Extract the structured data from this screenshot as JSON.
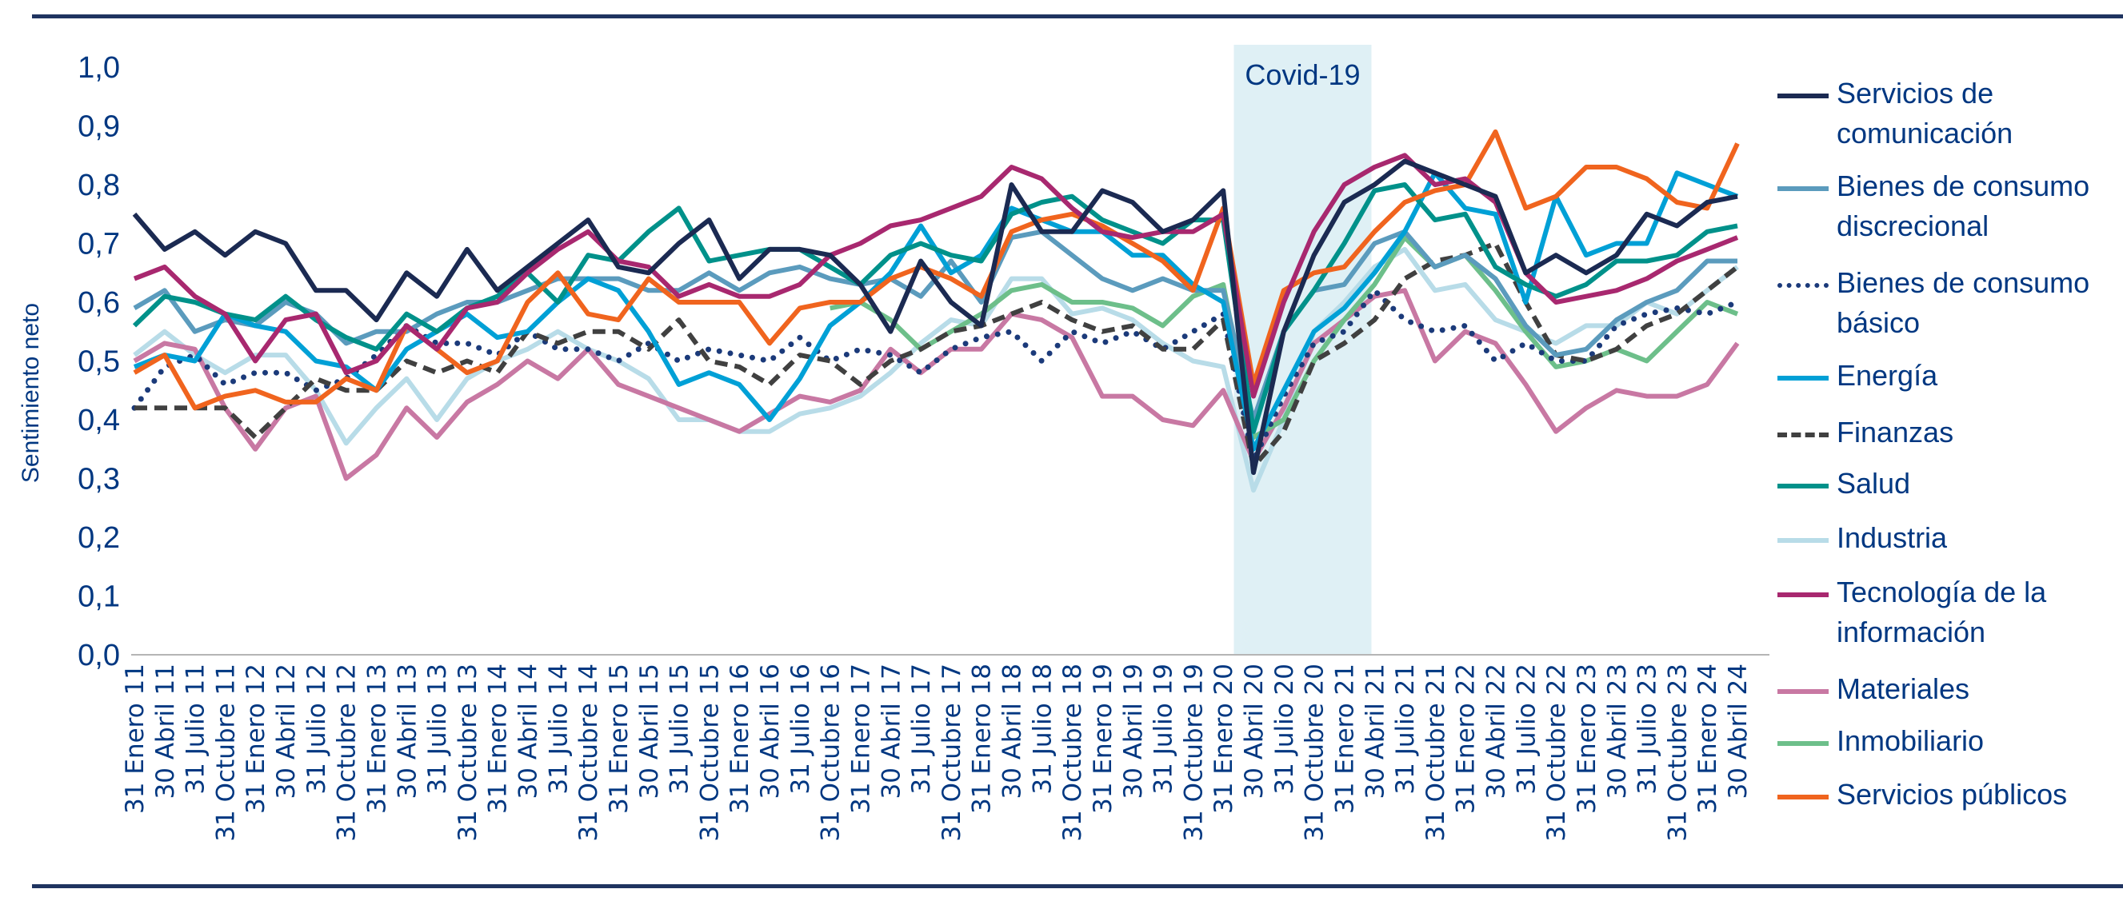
{
  "chart_data": {
    "type": "line",
    "ylabel": "Sentimiento neto",
    "xlabel": "",
    "ylim": [
      0,
      1.0
    ],
    "yticks": [
      "0,0",
      "0,1",
      "0,2",
      "0,3",
      "0,4",
      "0,5",
      "0,6",
      "0,7",
      "0,8",
      "0,9",
      "1,0"
    ],
    "grid": false,
    "legend_placement": "right",
    "shaded_region": {
      "label": "Covid-19",
      "from": "31 Enero 20",
      "to": "30 Abril 21",
      "color": "#dff0f5"
    },
    "categories": [
      "31 Enero 11",
      "30 Abril 11",
      "31 Julio 11",
      "31 Octubre 11",
      "31 Enero 12",
      "30 Abril 12",
      "31 Julio 12",
      "31 Octubre 12",
      "31 Enero 13",
      "30 Abril 13",
      "31 Julio 13",
      "31 Octubre 13",
      "31 Enero 14",
      "30 Abril 14",
      "31 Julio 14",
      "31 Octubre 14",
      "31 Enero 15",
      "30 Abril 15",
      "31 Julio 15",
      "31 Octubre 15",
      "31 Enero 16",
      "30 Abril 16",
      "31 Julio 16",
      "31 Octubre 16",
      "31 Enero 17",
      "30 Abril 17",
      "31 Julio 17",
      "31 Octubre 17",
      "31 Enero 18",
      "30 Abril 18",
      "31 Julio 18",
      "31 Octubre 18",
      "31 Enero 19",
      "30 Abril 19",
      "31 Julio 19",
      "31 Octubre 19",
      "31 Enero 20",
      "30 Abril 20",
      "31 Julio 20",
      "31 Octubre 20",
      "31 Enero 21",
      "30 Abril 21",
      "31 Julio 21",
      "31 Octubre 21",
      "31 Enero 22",
      "30 Abril 22",
      "31 Julio 22",
      "31 Octubre 22",
      "31 Enero 23",
      "30 Abril 23",
      "31 Julio 23",
      "31 Octubre 23",
      "31 Enero 24",
      "30 Abril 24"
    ],
    "series": [
      {
        "name": "Servicios de comunicación",
        "color": "#1b2a52",
        "style": "solid",
        "values": [
          0.75,
          0.69,
          0.72,
          0.68,
          0.72,
          0.7,
          0.62,
          0.62,
          0.57,
          0.65,
          0.61,
          0.69,
          0.62,
          0.66,
          0.7,
          0.74,
          0.66,
          0.65,
          0.7,
          0.74,
          0.64,
          0.69,
          0.69,
          0.68,
          0.63,
          0.55,
          0.67,
          0.6,
          0.56,
          0.8,
          0.72,
          0.72,
          0.79,
          0.77,
          0.72,
          0.74,
          0.79,
          0.31,
          0.55,
          0.68,
          0.77,
          0.8,
          0.84,
          0.82,
          0.8,
          0.78,
          0.65,
          0.68,
          0.65,
          0.68,
          0.75,
          0.73,
          0.77,
          0.78
        ]
      },
      {
        "name": "Bienes de consumo discrecional",
        "color": "#5b9bbd",
        "style": "solid",
        "values": [
          0.59,
          0.62,
          0.55,
          0.57,
          0.56,
          0.6,
          0.58,
          0.53,
          0.55,
          0.55,
          0.58,
          0.6,
          0.6,
          0.62,
          0.64,
          0.64,
          0.64,
          0.62,
          0.62,
          0.65,
          0.62,
          0.65,
          0.66,
          0.64,
          0.63,
          0.64,
          0.61,
          0.67,
          0.6,
          0.71,
          0.72,
          0.68,
          0.64,
          0.62,
          0.64,
          0.62,
          0.62,
          0.4,
          0.55,
          0.62,
          0.63,
          0.7,
          0.72,
          0.66,
          0.68,
          0.64,
          0.56,
          0.51,
          0.52,
          0.57,
          0.6,
          0.62,
          0.67,
          0.67
        ]
      },
      {
        "name": "Bienes de consumo básico",
        "color": "#1b3a7a",
        "style": "dotted",
        "values": [
          0.42,
          0.49,
          0.51,
          0.46,
          0.48,
          0.48,
          0.45,
          0.47,
          0.51,
          0.56,
          0.53,
          0.53,
          0.51,
          0.55,
          0.52,
          0.52,
          0.5,
          0.53,
          0.5,
          0.52,
          0.51,
          0.5,
          0.54,
          0.5,
          0.52,
          0.51,
          0.48,
          0.52,
          0.54,
          0.55,
          0.5,
          0.55,
          0.53,
          0.55,
          0.52,
          0.55,
          0.58,
          0.33,
          0.44,
          0.53,
          0.55,
          0.62,
          0.57,
          0.55,
          0.56,
          0.5,
          0.53,
          0.5,
          0.5,
          0.56,
          0.58,
          0.59,
          0.58,
          0.6
        ]
      },
      {
        "name": "Energía",
        "color": "#00a0d6",
        "style": "solid",
        "values": [
          0.49,
          0.51,
          0.5,
          0.58,
          0.56,
          0.55,
          0.5,
          0.49,
          0.45,
          0.52,
          0.55,
          0.58,
          0.54,
          0.55,
          0.6,
          0.64,
          0.62,
          0.55,
          0.46,
          0.48,
          0.46,
          0.4,
          0.47,
          0.56,
          0.6,
          0.65,
          0.73,
          0.65,
          0.68,
          0.76,
          0.74,
          0.72,
          0.72,
          0.68,
          0.68,
          0.63,
          0.6,
          0.35,
          0.45,
          0.55,
          0.59,
          0.65,
          0.72,
          0.82,
          0.76,
          0.75,
          0.6,
          0.78,
          0.68,
          0.7,
          0.7,
          0.82,
          0.8,
          0.78
        ]
      },
      {
        "name": "Finanzas",
        "color": "#404040",
        "style": "dashed",
        "values": [
          0.42,
          0.42,
          0.42,
          0.42,
          0.37,
          0.42,
          0.47,
          0.45,
          0.45,
          0.5,
          0.48,
          0.5,
          0.48,
          0.55,
          0.53,
          0.55,
          0.55,
          0.52,
          0.57,
          0.5,
          0.49,
          0.46,
          0.51,
          0.5,
          0.46,
          0.5,
          0.52,
          0.55,
          0.56,
          0.58,
          0.6,
          0.57,
          0.55,
          0.56,
          0.52,
          0.52,
          0.57,
          0.32,
          0.38,
          0.5,
          0.53,
          0.57,
          0.64,
          0.67,
          0.68,
          0.7,
          0.6,
          0.51,
          0.5,
          0.52,
          0.56,
          0.58,
          0.62,
          0.66
        ]
      },
      {
        "name": "Salud",
        "color": "#00918a",
        "style": "solid",
        "values": [
          0.56,
          0.61,
          0.6,
          0.58,
          0.57,
          0.61,
          0.57,
          0.54,
          0.52,
          0.58,
          0.55,
          0.59,
          0.61,
          0.65,
          0.6,
          0.68,
          0.67,
          0.72,
          0.76,
          0.67,
          0.68,
          0.69,
          0.69,
          0.66,
          0.63,
          0.68,
          0.7,
          0.68,
          0.67,
          0.75,
          0.77,
          0.78,
          0.74,
          0.72,
          0.7,
          0.74,
          0.74,
          0.38,
          0.55,
          0.62,
          0.7,
          0.79,
          0.8,
          0.74,
          0.75,
          0.66,
          0.63,
          0.61,
          0.63,
          0.67,
          0.67,
          0.68,
          0.72,
          0.73
        ]
      },
      {
        "name": "Industria",
        "color": "#b8dce8",
        "style": "solid",
        "values": [
          0.51,
          0.55,
          0.51,
          0.48,
          0.51,
          0.51,
          0.45,
          0.36,
          0.42,
          0.47,
          0.4,
          0.47,
          0.5,
          0.52,
          0.55,
          0.52,
          0.5,
          0.47,
          0.4,
          0.4,
          0.38,
          0.38,
          0.41,
          0.42,
          0.44,
          0.48,
          0.53,
          0.57,
          0.56,
          0.64,
          0.64,
          0.58,
          0.59,
          0.57,
          0.53,
          0.5,
          0.49,
          0.28,
          0.4,
          0.55,
          0.6,
          0.66,
          0.69,
          0.62,
          0.63,
          0.57,
          0.55,
          0.53,
          0.56,
          0.56,
          0.6,
          0.58,
          0.62,
          0.66
        ]
      },
      {
        "name": "Tecnología de la información",
        "color": "#a8286f",
        "style": "solid",
        "values": [
          0.64,
          0.66,
          0.61,
          0.58,
          0.5,
          0.57,
          0.58,
          0.48,
          0.5,
          0.56,
          0.52,
          0.59,
          0.6,
          0.65,
          0.69,
          0.72,
          0.67,
          0.66,
          0.61,
          0.63,
          0.61,
          0.61,
          0.63,
          0.68,
          0.7,
          0.73,
          0.74,
          0.76,
          0.78,
          0.83,
          0.81,
          0.76,
          0.72,
          0.71,
          0.72,
          0.72,
          0.75,
          0.44,
          0.6,
          0.72,
          0.8,
          0.83,
          0.85,
          0.8,
          0.81,
          0.77,
          0.65,
          0.6,
          0.61,
          0.62,
          0.64,
          0.67,
          0.69,
          0.71
        ]
      },
      {
        "name": "Materiales",
        "color": "#c878a3",
        "style": "solid",
        "values": [
          0.5,
          0.53,
          0.52,
          0.42,
          0.35,
          0.42,
          0.44,
          0.3,
          0.34,
          0.42,
          0.37,
          0.43,
          0.46,
          0.5,
          0.47,
          0.52,
          0.46,
          0.44,
          0.42,
          0.4,
          0.38,
          0.41,
          0.44,
          0.43,
          0.45,
          0.52,
          0.48,
          0.52,
          0.52,
          0.58,
          0.57,
          0.54,
          0.44,
          0.44,
          0.4,
          0.39,
          0.45,
          0.33,
          0.42,
          0.53,
          0.57,
          0.61,
          0.62,
          0.5,
          0.55,
          0.53,
          0.46,
          0.38,
          0.42,
          0.45,
          0.44,
          0.44,
          0.46,
          0.53
        ]
      },
      {
        "name": "Inmobiliario",
        "color": "#6dbf8a",
        "style": "solid",
        "values": [
          null,
          null,
          null,
          null,
          null,
          null,
          null,
          null,
          null,
          null,
          null,
          null,
          null,
          null,
          null,
          null,
          null,
          null,
          null,
          null,
          null,
          null,
          null,
          0.59,
          0.6,
          0.57,
          0.52,
          0.55,
          0.58,
          0.62,
          0.63,
          0.6,
          0.6,
          0.59,
          0.56,
          0.61,
          0.63,
          0.37,
          0.4,
          0.5,
          0.57,
          0.63,
          0.71,
          0.66,
          0.68,
          0.62,
          0.55,
          0.49,
          0.5,
          0.52,
          0.5,
          0.55,
          0.6,
          0.58
        ]
      },
      {
        "name": "Servicios públicos",
        "color": "#f0641e",
        "style": "solid",
        "values": [
          0.48,
          0.51,
          0.42,
          0.44,
          0.45,
          0.43,
          0.43,
          0.47,
          0.45,
          0.56,
          0.52,
          0.48,
          0.5,
          0.6,
          0.65,
          0.58,
          0.57,
          0.64,
          0.6,
          0.6,
          0.6,
          0.53,
          0.59,
          0.6,
          0.6,
          0.64,
          0.66,
          0.64,
          0.61,
          0.72,
          0.74,
          0.75,
          0.73,
          0.7,
          0.67,
          0.62,
          0.76,
          0.46,
          0.62,
          0.65,
          0.66,
          0.72,
          0.77,
          0.79,
          0.8,
          0.89,
          0.76,
          0.78,
          0.83,
          0.83,
          0.81,
          0.77,
          0.76,
          0.87
        ]
      }
    ]
  }
}
